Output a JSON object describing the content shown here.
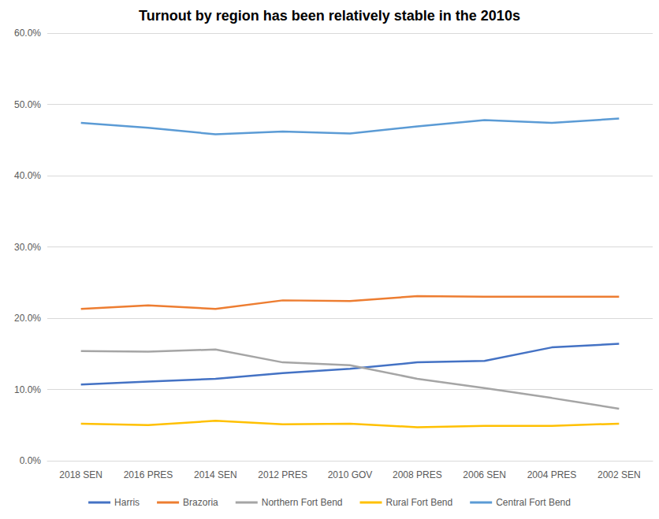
{
  "chart_data": {
    "type": "line",
    "title": "Turnout by region has been relatively stable in the 2010s",
    "categories": [
      "2018 SEN",
      "2016 PRES",
      "2014 SEN",
      "2012 PRES",
      "2010 GOV",
      "2008 PRES",
      "2006 SEN",
      "2004 PRES",
      "2002 SEN"
    ],
    "series": [
      {
        "name": "Harris",
        "color": "#4472c4",
        "values": [
          10.7,
          11.1,
          11.5,
          12.3,
          12.9,
          13.8,
          14.0,
          15.9,
          16.4
        ]
      },
      {
        "name": "Brazoria",
        "color": "#ed7d31",
        "values": [
          21.3,
          21.8,
          21.3,
          22.5,
          22.4,
          23.1,
          23.0,
          23.0,
          23.0
        ]
      },
      {
        "name": "Northern Fort Bend",
        "color": "#a5a5a5",
        "values": [
          15.4,
          15.3,
          15.6,
          13.8,
          13.4,
          11.5,
          10.2,
          8.8,
          7.3
        ]
      },
      {
        "name": "Rural Fort Bend",
        "color": "#ffc000",
        "values": [
          5.2,
          5.0,
          5.6,
          5.1,
          5.2,
          4.7,
          4.9,
          4.9,
          5.2
        ]
      },
      {
        "name": "Central Fort Bend",
        "color": "#5b9bd5",
        "values": [
          47.4,
          46.7,
          45.8,
          46.2,
          45.9,
          46.9,
          47.8,
          47.4,
          48.0
        ]
      }
    ],
    "ylim": [
      0,
      60
    ],
    "yticks": [
      {
        "value": 0,
        "label": "0.0%"
      },
      {
        "value": 10,
        "label": "10.0%"
      },
      {
        "value": 20,
        "label": "20.0%"
      },
      {
        "value": 30,
        "label": "30.0%"
      },
      {
        "value": 40,
        "label": "40.0%"
      },
      {
        "value": 50,
        "label": "50.0%"
      },
      {
        "value": 60,
        "label": "60.0%"
      }
    ],
    "grid": true,
    "legend": "bottom"
  }
}
